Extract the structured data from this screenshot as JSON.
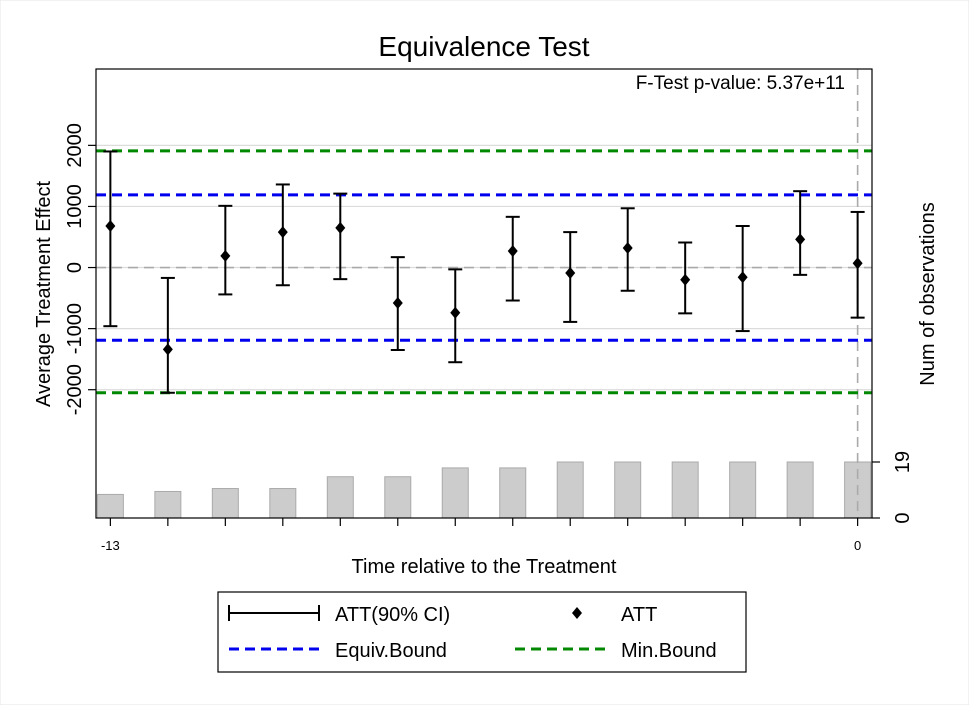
{
  "chart_data": {
    "type": "scatter",
    "title": "Equivalence Test",
    "annotation": "F-Test p-value: 5.37e+11",
    "xlabel": "Time relative to the Treatment",
    "ylabel": "Average Treatment Effect",
    "y2label": "Num of observations",
    "xlim": [
      -13.25,
      0.25
    ],
    "x_ticks": [
      -13,
      0
    ],
    "ylim": [
      -4100,
      3250
    ],
    "y_ticks": [
      2000,
      1000,
      0,
      -1000,
      -2000
    ],
    "y_tick_labels": [
      "2000",
      "1000",
      "0",
      "-1000",
      "-2000"
    ],
    "y2_ticks": [
      0,
      19
    ],
    "y2_max": 19,
    "grid": true,
    "vline_x": 0,
    "hline_y": 0,
    "equiv_bound": [
      1190,
      -1190
    ],
    "min_bound": [
      1910,
      -2050
    ],
    "colors": {
      "att": "#000000",
      "equiv_bound": "#0000ee",
      "min_bound": "#008800",
      "bars": "#cccccc",
      "bar_edge": "#aaaaaa",
      "zero_line": "#aaaaaa",
      "grid": "#dcdcdc"
    },
    "series": [
      {
        "name": "ATT",
        "points": [
          {
            "x": -13,
            "att": 680,
            "lo": -960,
            "hi": 1900
          },
          {
            "x": -12,
            "att": -1340,
            "lo": -2050,
            "hi": -170
          },
          {
            "x": -11,
            "att": 190,
            "lo": -440,
            "hi": 1010
          },
          {
            "x": -10,
            "att": 580,
            "lo": -290,
            "hi": 1360
          },
          {
            "x": -9,
            "att": 650,
            "lo": -190,
            "hi": 1210
          },
          {
            "x": -8,
            "att": -580,
            "lo": -1350,
            "hi": 170
          },
          {
            "x": -7,
            "att": -740,
            "lo": -1550,
            "hi": -30
          },
          {
            "x": -6,
            "att": 270,
            "lo": -540,
            "hi": 830
          },
          {
            "x": -5,
            "att": -90,
            "lo": -890,
            "hi": 580
          },
          {
            "x": -4,
            "att": 320,
            "lo": -380,
            "hi": 970
          },
          {
            "x": -3,
            "att": -200,
            "lo": -750,
            "hi": 410
          },
          {
            "x": -2,
            "att": -160,
            "lo": -1040,
            "hi": 680
          },
          {
            "x": -1,
            "att": 460,
            "lo": -120,
            "hi": 1250
          },
          {
            "x": 0,
            "att": 70,
            "lo": -820,
            "hi": 910
          }
        ]
      },
      {
        "name": "Num of observations",
        "x": [
          -13,
          -12,
          -11,
          -10,
          -9,
          -8,
          -7,
          -6,
          -5,
          -4,
          -3,
          -2,
          -1,
          0
        ],
        "values": [
          8,
          9,
          10,
          10,
          14,
          14,
          17,
          17,
          19,
          19,
          19,
          19,
          19,
          19
        ]
      }
    ],
    "legend": {
      "position": "bottom-center",
      "items": [
        {
          "label": "ATT(90% CI)",
          "symbol": "errorbar"
        },
        {
          "label": "ATT",
          "symbol": "diamond"
        },
        {
          "label": "Equiv.Bound",
          "symbol": "dash-blue"
        },
        {
          "label": "Min.Bound",
          "symbol": "dash-green"
        }
      ]
    }
  }
}
